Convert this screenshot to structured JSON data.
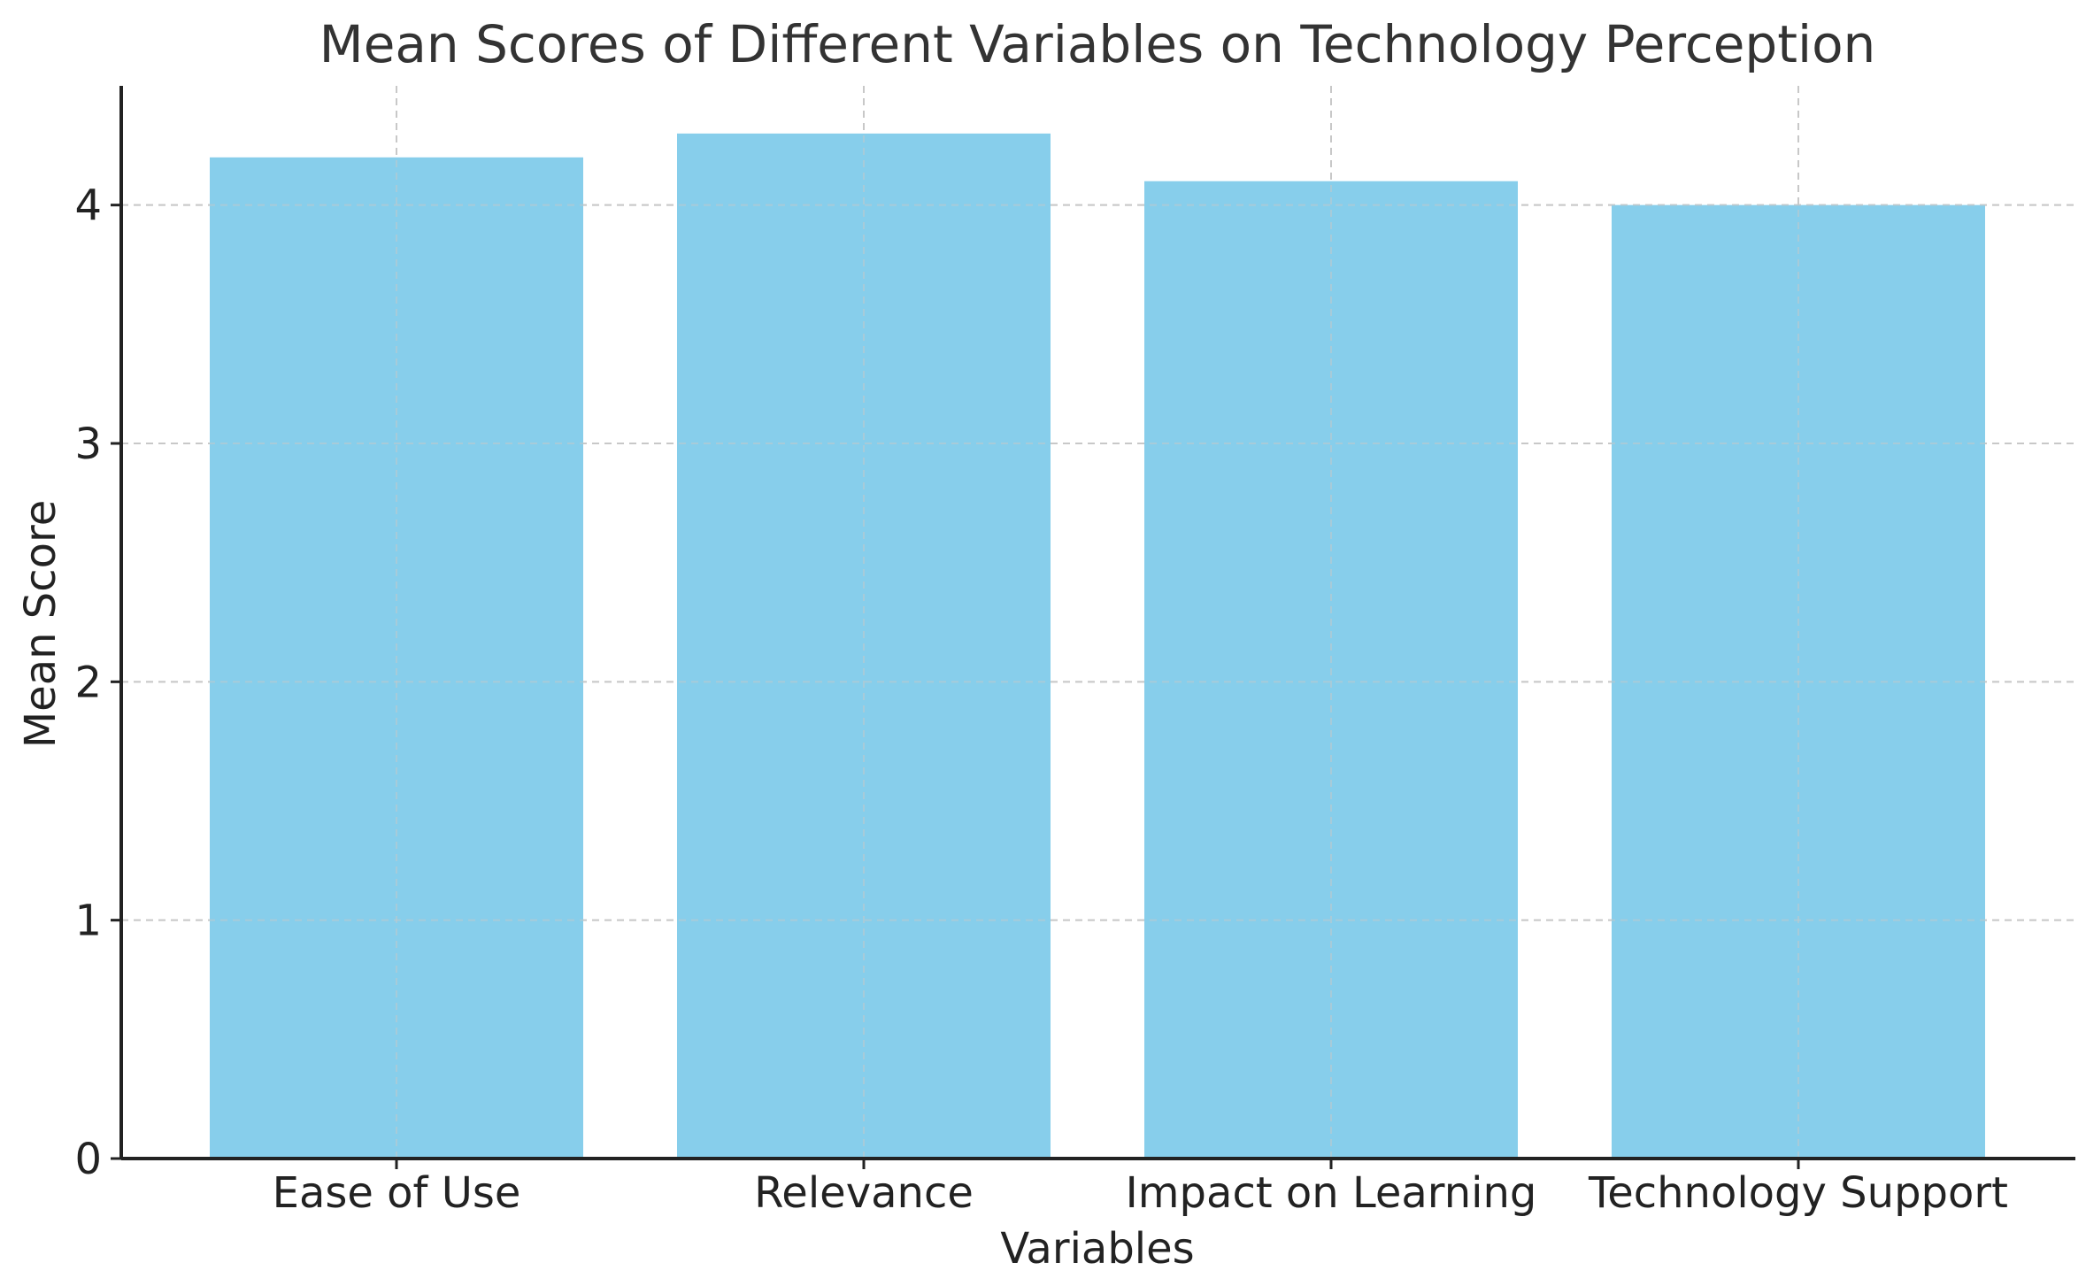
{
  "chart_data": {
    "type": "bar",
    "title": "Mean Scores of Different Variables on Technology Perception",
    "xlabel": "Variables",
    "ylabel": "Mean Score",
    "categories": [
      "Ease of Use",
      "Relevance",
      "Impact on Learning",
      "Technology Support"
    ],
    "values": [
      4.2,
      4.3,
      4.1,
      4.0
    ],
    "ylim": [
      0,
      4.5
    ],
    "yticks": [
      "0",
      "1",
      "2",
      "3",
      "4"
    ],
    "grid": true,
    "bar_color": "#87CEEB"
  }
}
